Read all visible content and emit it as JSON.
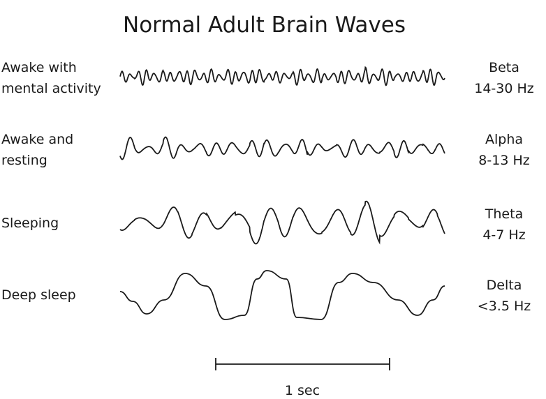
{
  "title": "Normal Adult Brain Waves",
  "rows": [
    {
      "state_line1": "Awake with",
      "state_line2": "mental activity",
      "band": "Beta",
      "range": "14-30 Hz"
    },
    {
      "state_line1": "Awake and",
      "state_line2": "resting",
      "band": "Alpha",
      "range": "8-13 Hz"
    },
    {
      "state_line1": "Sleeping",
      "state_line2": "",
      "band": "Theta",
      "range": "4-7 Hz"
    },
    {
      "state_line1": "Deep sleep",
      "state_line2": "",
      "band": "Delta",
      "range": "<3.5 Hz"
    }
  ],
  "scale_bar": {
    "label": "1 sec"
  },
  "colors": {
    "line": "#1a1a1a",
    "background": "#ffffff"
  }
}
